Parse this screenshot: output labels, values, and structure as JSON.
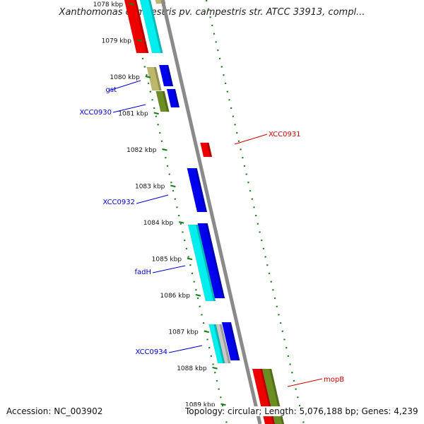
{
  "title": "Xanthomonas campestris pv. campestris str. ATCC 33913, compl...",
  "footer": {
    "accession": "Accession: NC_003902",
    "summary": "Topology: circular; Length: 5,076,188 bp; Genes: 4,239"
  },
  "ticks": [
    "1078 kbp",
    "1079 kbp",
    "1080 kbp",
    "1081 kbp",
    "1082 kbp",
    "1083 kbp",
    "1084 kbp",
    "1085 kbp",
    "1086 kbp",
    "1087 kbp",
    "1088 kbp",
    "1089 kbp"
  ],
  "colors": {
    "backbone": "#8a8a8a",
    "tick": "#1a7a1a",
    "forward_label": "#0000cc",
    "reverse_label": "#cc0000",
    "red": "#ee0000",
    "blue": "#0000ee",
    "cyan": "#00eeee",
    "olive": "#6b8e23",
    "khaki": "#bdb76b",
    "gray": "#c8c8c8"
  },
  "gene_labels": [
    {
      "text": "gst",
      "color": "forward_label"
    },
    {
      "text": "XCC0930",
      "color": "forward_label"
    },
    {
      "text": "XCC0931",
      "color": "reverse_label"
    },
    {
      "text": "XCC0932",
      "color": "forward_label"
    },
    {
      "text": "fadH",
      "color": "forward_label"
    },
    {
      "text": "XCC0934",
      "color": "forward_label"
    },
    {
      "text": "mopB",
      "color": "reverse_label"
    }
  ]
}
